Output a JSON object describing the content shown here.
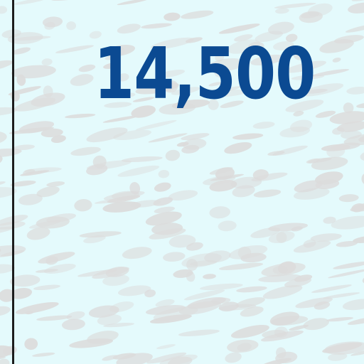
{
  "map": {
    "depth_label": "14,500",
    "colors": {
      "water": "#e4fafc",
      "relief_texture": "#dcdcdc",
      "label_blue": "#0b4a92",
      "boundary_line": "#1c1c1c"
    }
  }
}
